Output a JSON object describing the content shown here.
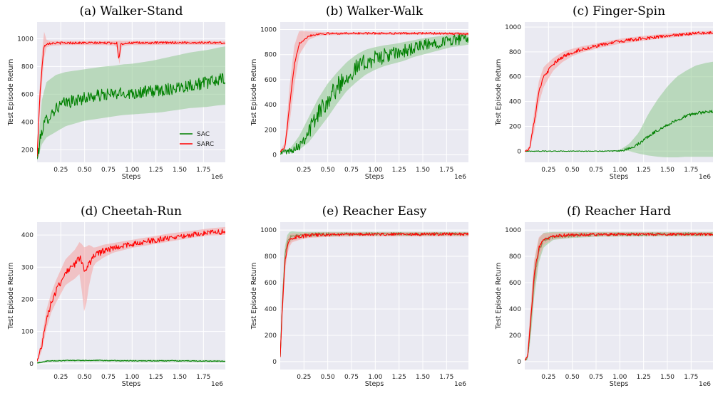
{
  "chart_data": [
    {
      "type": "line",
      "title": "(a) Walker-Stand",
      "xlabel": "Steps",
      "ylabel": "Test Episode Return",
      "x_scale_label": "1e6",
      "xlim": [
        0,
        1.98
      ],
      "ylim": [
        110,
        1120
      ],
      "xticks": [
        "0.25",
        "0.50",
        "0.75",
        "1.00",
        "1.25",
        "1.50",
        "1.75"
      ],
      "yticks": [
        "200",
        "400",
        "600",
        "800",
        "1000"
      ],
      "grid": true,
      "legend": {
        "position": "bottom-right",
        "entries": [
          "SAC",
          "SARC"
        ]
      },
      "series": [
        {
          "name": "SAC",
          "color": "#008000",
          "band_color": "#8fc98f",
          "x": [
            0,
            0.05,
            0.1,
            0.2,
            0.3,
            0.4,
            0.5,
            0.6,
            0.7,
            0.8,
            0.9,
            1.0,
            1.1,
            1.2,
            1.3,
            1.4,
            1.5,
            1.6,
            1.7,
            1.8,
            1.9,
            1.98
          ],
          "y": [
            130,
            340,
            420,
            500,
            540,
            555,
            575,
            585,
            595,
            600,
            605,
            610,
            615,
            620,
            630,
            640,
            655,
            665,
            675,
            685,
            700,
            710
          ],
          "lower": [
            120,
            240,
            290,
            330,
            370,
            390,
            410,
            420,
            430,
            440,
            450,
            455,
            460,
            465,
            470,
            480,
            490,
            500,
            505,
            510,
            520,
            525
          ],
          "upper": [
            140,
            560,
            690,
            740,
            760,
            770,
            780,
            790,
            800,
            805,
            815,
            820,
            830,
            840,
            855,
            870,
            885,
            900,
            910,
            920,
            935,
            945
          ],
          "noise": 45
        },
        {
          "name": "SARC",
          "color": "#ff0000",
          "band_color": "#f4a0a0",
          "x": [
            0,
            0.03,
            0.07,
            0.1,
            0.15,
            0.3,
            0.5,
            0.7,
            0.84,
            0.86,
            0.88,
            0.92,
            1.0,
            1.2,
            1.4,
            1.6,
            1.8,
            1.98
          ],
          "y": [
            150,
            600,
            940,
            965,
            968,
            970,
            970,
            970,
            968,
            850,
            960,
            968,
            970,
            970,
            972,
            972,
            972,
            970
          ],
          "lower": [
            140,
            480,
            850,
            940,
            950,
            955,
            955,
            955,
            950,
            760,
            940,
            950,
            955,
            955,
            957,
            957,
            957,
            955
          ],
          "upper": [
            160,
            720,
            1060,
            990,
            985,
            985,
            985,
            985,
            985,
            990,
            985,
            985,
            985,
            985,
            987,
            987,
            987,
            985
          ],
          "noise": 8
        }
      ]
    },
    {
      "type": "line",
      "title": "(b) Walker-Walk",
      "xlabel": "Steps",
      "ylabel": "Test Episode Return",
      "x_scale_label": "1e6",
      "xlim": [
        0,
        1.98
      ],
      "ylim": [
        -60,
        1060
      ],
      "xticks": [
        "0.25",
        "0.50",
        "0.75",
        "1.00",
        "1.25",
        "1.50",
        "1.75"
      ],
      "yticks": [
        "0",
        "200",
        "400",
        "600",
        "800",
        "1000"
      ],
      "grid": true,
      "series": [
        {
          "name": "SAC",
          "color": "#008000",
          "band_color": "#8fc98f",
          "x": [
            0,
            0.1,
            0.2,
            0.3,
            0.4,
            0.5,
            0.6,
            0.7,
            0.8,
            0.9,
            1.0,
            1.1,
            1.2,
            1.3,
            1.4,
            1.5,
            1.6,
            1.7,
            1.8,
            1.9,
            1.98
          ],
          "y": [
            25,
            30,
            80,
            190,
            330,
            440,
            540,
            630,
            690,
            740,
            770,
            790,
            805,
            825,
            850,
            870,
            885,
            905,
            915,
            925,
            930
          ],
          "lower": [
            20,
            22,
            40,
            100,
            200,
            300,
            410,
            510,
            580,
            640,
            680,
            710,
            730,
            750,
            780,
            800,
            820,
            840,
            860,
            870,
            880
          ],
          "upper": [
            30,
            45,
            150,
            300,
            450,
            570,
            660,
            740,
            800,
            840,
            860,
            875,
            885,
            900,
            915,
            930,
            940,
            950,
            960,
            965,
            970
          ],
          "noise": 75
        },
        {
          "name": "SARC",
          "color": "#ff0000",
          "band_color": "#f4a0a0",
          "x": [
            0,
            0.05,
            0.1,
            0.15,
            0.2,
            0.3,
            0.4,
            0.5,
            0.7,
            1.0,
            1.3,
            1.6,
            1.98
          ],
          "y": [
            25,
            60,
            400,
            720,
            890,
            950,
            965,
            968,
            970,
            970,
            970,
            970,
            965
          ],
          "lower": [
            20,
            40,
            260,
            560,
            800,
            920,
            950,
            955,
            958,
            958,
            958,
            958,
            955
          ],
          "upper": [
            30,
            100,
            560,
            880,
            990,
            985,
            982,
            980,
            980,
            980,
            980,
            980,
            978
          ],
          "noise": 8
        }
      ]
    },
    {
      "type": "line",
      "title": "(c) Finger-Spin",
      "xlabel": "Steps",
      "ylabel": "Test Episode Return",
      "x_scale_label": "1e6",
      "xlim": [
        0,
        1.98
      ],
      "ylim": [
        -90,
        1040
      ],
      "xticks": [
        "0.25",
        "0.50",
        "0.75",
        "1.00",
        "1.25",
        "1.50",
        "1.75"
      ],
      "yticks": [
        "0",
        "200",
        "400",
        "600",
        "800",
        "1000"
      ],
      "grid": true,
      "series": [
        {
          "name": "SAC",
          "color": "#008000",
          "band_color": "#8fc98f",
          "x": [
            0,
            0.3,
            0.6,
            0.9,
            1.0,
            1.1,
            1.2,
            1.3,
            1.4,
            1.5,
            1.6,
            1.7,
            1.8,
            1.9,
            1.98
          ],
          "y": [
            0,
            0,
            0,
            0,
            2,
            20,
            60,
            120,
            170,
            210,
            250,
            285,
            305,
            315,
            320
          ],
          "lower": [
            0,
            0,
            0,
            0,
            0,
            0,
            -20,
            -35,
            -45,
            -50,
            -50,
            -45,
            -45,
            -45,
            -45
          ],
          "upper": [
            0,
            0,
            0,
            0,
            10,
            60,
            150,
            300,
            420,
            520,
            600,
            650,
            690,
            710,
            720
          ],
          "noise": 12
        },
        {
          "name": "SARC",
          "color": "#ff0000",
          "band_color": "#f4a0a0",
          "x": [
            0,
            0.05,
            0.1,
            0.15,
            0.2,
            0.3,
            0.4,
            0.5,
            0.6,
            0.8,
            1.0,
            1.2,
            1.4,
            1.6,
            1.8,
            1.98
          ],
          "y": [
            0,
            20,
            240,
            480,
            600,
            700,
            760,
            795,
            820,
            855,
            885,
            905,
            920,
            935,
            950,
            955
          ],
          "lower": [
            0,
            5,
            160,
            390,
            520,
            650,
            720,
            765,
            795,
            835,
            865,
            885,
            905,
            920,
            935,
            940
          ],
          "upper": [
            0,
            40,
            320,
            570,
            680,
            750,
            800,
            825,
            845,
            875,
            905,
            925,
            940,
            952,
            965,
            970
          ],
          "noise": 14
        }
      ]
    },
    {
      "type": "line",
      "title": "(d) Cheetah-Run",
      "xlabel": "Steps",
      "ylabel": "Test Episode Return",
      "x_scale_label": "1e6",
      "xlim": [
        0,
        1.98
      ],
      "ylim": [
        -18,
        440
      ],
      "xticks": [
        "0.25",
        "0.50",
        "0.75",
        "1.00",
        "1.25",
        "1.50",
        "1.75"
      ],
      "yticks": [
        "0",
        "100",
        "200",
        "300",
        "400"
      ],
      "grid": true,
      "series": [
        {
          "name": "SAC",
          "color": "#008000",
          "band_color": "#8fc98f",
          "x": [
            0,
            0.1,
            0.3,
            0.6,
            1.0,
            1.4,
            1.98
          ],
          "y": [
            2,
            8,
            10,
            10,
            9,
            9,
            8
          ],
          "lower": [
            0,
            5,
            7,
            7,
            6,
            6,
            5
          ],
          "upper": [
            4,
            11,
            13,
            13,
            12,
            12,
            11
          ],
          "noise": 1.5
        },
        {
          "name": "SARC",
          "color": "#ff0000",
          "band_color": "#f4a0a0",
          "x": [
            0,
            0.05,
            0.1,
            0.15,
            0.2,
            0.3,
            0.4,
            0.45,
            0.5,
            0.55,
            0.6,
            0.7,
            0.8,
            1.0,
            1.2,
            1.4,
            1.6,
            1.8,
            1.98
          ],
          "y": [
            5,
            60,
            140,
            190,
            225,
            285,
            310,
            330,
            290,
            310,
            335,
            350,
            360,
            372,
            382,
            392,
            400,
            408,
            410
          ],
          "lower": [
            2,
            40,
            110,
            160,
            190,
            245,
            265,
            280,
            150,
            250,
            310,
            330,
            345,
            360,
            370,
            380,
            390,
            398,
            400
          ],
          "upper": [
            8,
            80,
            170,
            220,
            260,
            325,
            355,
            380,
            360,
            370,
            360,
            370,
            375,
            385,
            395,
            405,
            412,
            420,
            425
          ],
          "noise": 10
        }
      ]
    },
    {
      "type": "line",
      "title": "(e) Reacher Easy",
      "xlabel": "Steps",
      "ylabel": "Test Episode Return",
      "x_scale_label": "1e6",
      "xlim": [
        0,
        1.98
      ],
      "ylim": [
        -60,
        1060
      ],
      "xticks": [
        "0.25",
        "0.50",
        "0.75",
        "1.00",
        "1.25",
        "1.50",
        "1.75"
      ],
      "yticks": [
        "0",
        "200",
        "400",
        "600",
        "800",
        "1000"
      ],
      "grid": true,
      "series": [
        {
          "name": "SAC",
          "color": "#008000",
          "band_color": "#8fc98f",
          "x": [
            0,
            0.02,
            0.05,
            0.08,
            0.12,
            0.2,
            0.3,
            0.5,
            0.8,
            1.2,
            1.6,
            1.98
          ],
          "y": [
            40,
            400,
            800,
            930,
            955,
            960,
            965,
            968,
            970,
            970,
            970,
            970
          ],
          "lower": [
            30,
            300,
            720,
            880,
            920,
            935,
            945,
            950,
            955,
            955,
            955,
            955
          ],
          "upper": [
            50,
            500,
            880,
            980,
            990,
            985,
            985,
            985,
            985,
            985,
            985,
            985
          ],
          "noise": 12
        },
        {
          "name": "SARC",
          "color": "#ff0000",
          "band_color": "#f4a0a0",
          "x": [
            0,
            0.02,
            0.05,
            0.08,
            0.12,
            0.2,
            0.3,
            0.5,
            0.8,
            1.2,
            1.6,
            1.98
          ],
          "y": [
            40,
            380,
            760,
            900,
            940,
            950,
            960,
            965,
            968,
            968,
            968,
            968
          ],
          "lower": [
            30,
            280,
            680,
            850,
            905,
            925,
            940,
            948,
            952,
            952,
            952,
            952
          ],
          "upper": [
            50,
            480,
            840,
            960,
            975,
            975,
            980,
            982,
            982,
            982,
            982,
            982
          ],
          "noise": 14
        }
      ]
    },
    {
      "type": "line",
      "title": "(f) Reacher Hard",
      "xlabel": "Steps",
      "ylabel": "Test Episode Return",
      "x_scale_label": "1e6",
      "xlim": [
        0,
        1.98
      ],
      "ylim": [
        -60,
        1060
      ],
      "xticks": [
        "0.25",
        "0.50",
        "0.75",
        "1.00",
        "1.25",
        "1.50",
        "1.75"
      ],
      "yticks": [
        "0",
        "200",
        "400",
        "600",
        "800",
        "1000"
      ],
      "grid": true,
      "series": [
        {
          "name": "SAC",
          "color": "#008000",
          "band_color": "#8fc98f",
          "x": [
            0,
            0.03,
            0.06,
            0.1,
            0.15,
            0.2,
            0.3,
            0.5,
            0.8,
            1.2,
            1.6,
            1.98
          ],
          "y": [
            10,
            30,
            250,
            620,
            850,
            920,
            950,
            960,
            965,
            968,
            968,
            968
          ],
          "lower": [
            5,
            15,
            150,
            500,
            760,
            870,
            925,
            940,
            950,
            952,
            952,
            952
          ],
          "upper": [
            15,
            50,
            380,
            760,
            940,
            980,
            985,
            985,
            985,
            985,
            985,
            985
          ],
          "noise": 14
        },
        {
          "name": "SARC",
          "color": "#ff0000",
          "band_color": "#f4a0a0",
          "x": [
            0,
            0.03,
            0.06,
            0.1,
            0.15,
            0.2,
            0.3,
            0.5,
            0.8,
            1.2,
            1.6,
            1.98
          ],
          "y": [
            10,
            40,
            300,
            660,
            870,
            930,
            955,
            962,
            966,
            968,
            968,
            968
          ],
          "lower": [
            5,
            20,
            200,
            550,
            790,
            890,
            930,
            945,
            952,
            955,
            955,
            955
          ],
          "upper": [
            15,
            60,
            420,
            780,
            950,
            975,
            980,
            982,
            982,
            982,
            982,
            982
          ],
          "noise": 12
        }
      ]
    }
  ]
}
